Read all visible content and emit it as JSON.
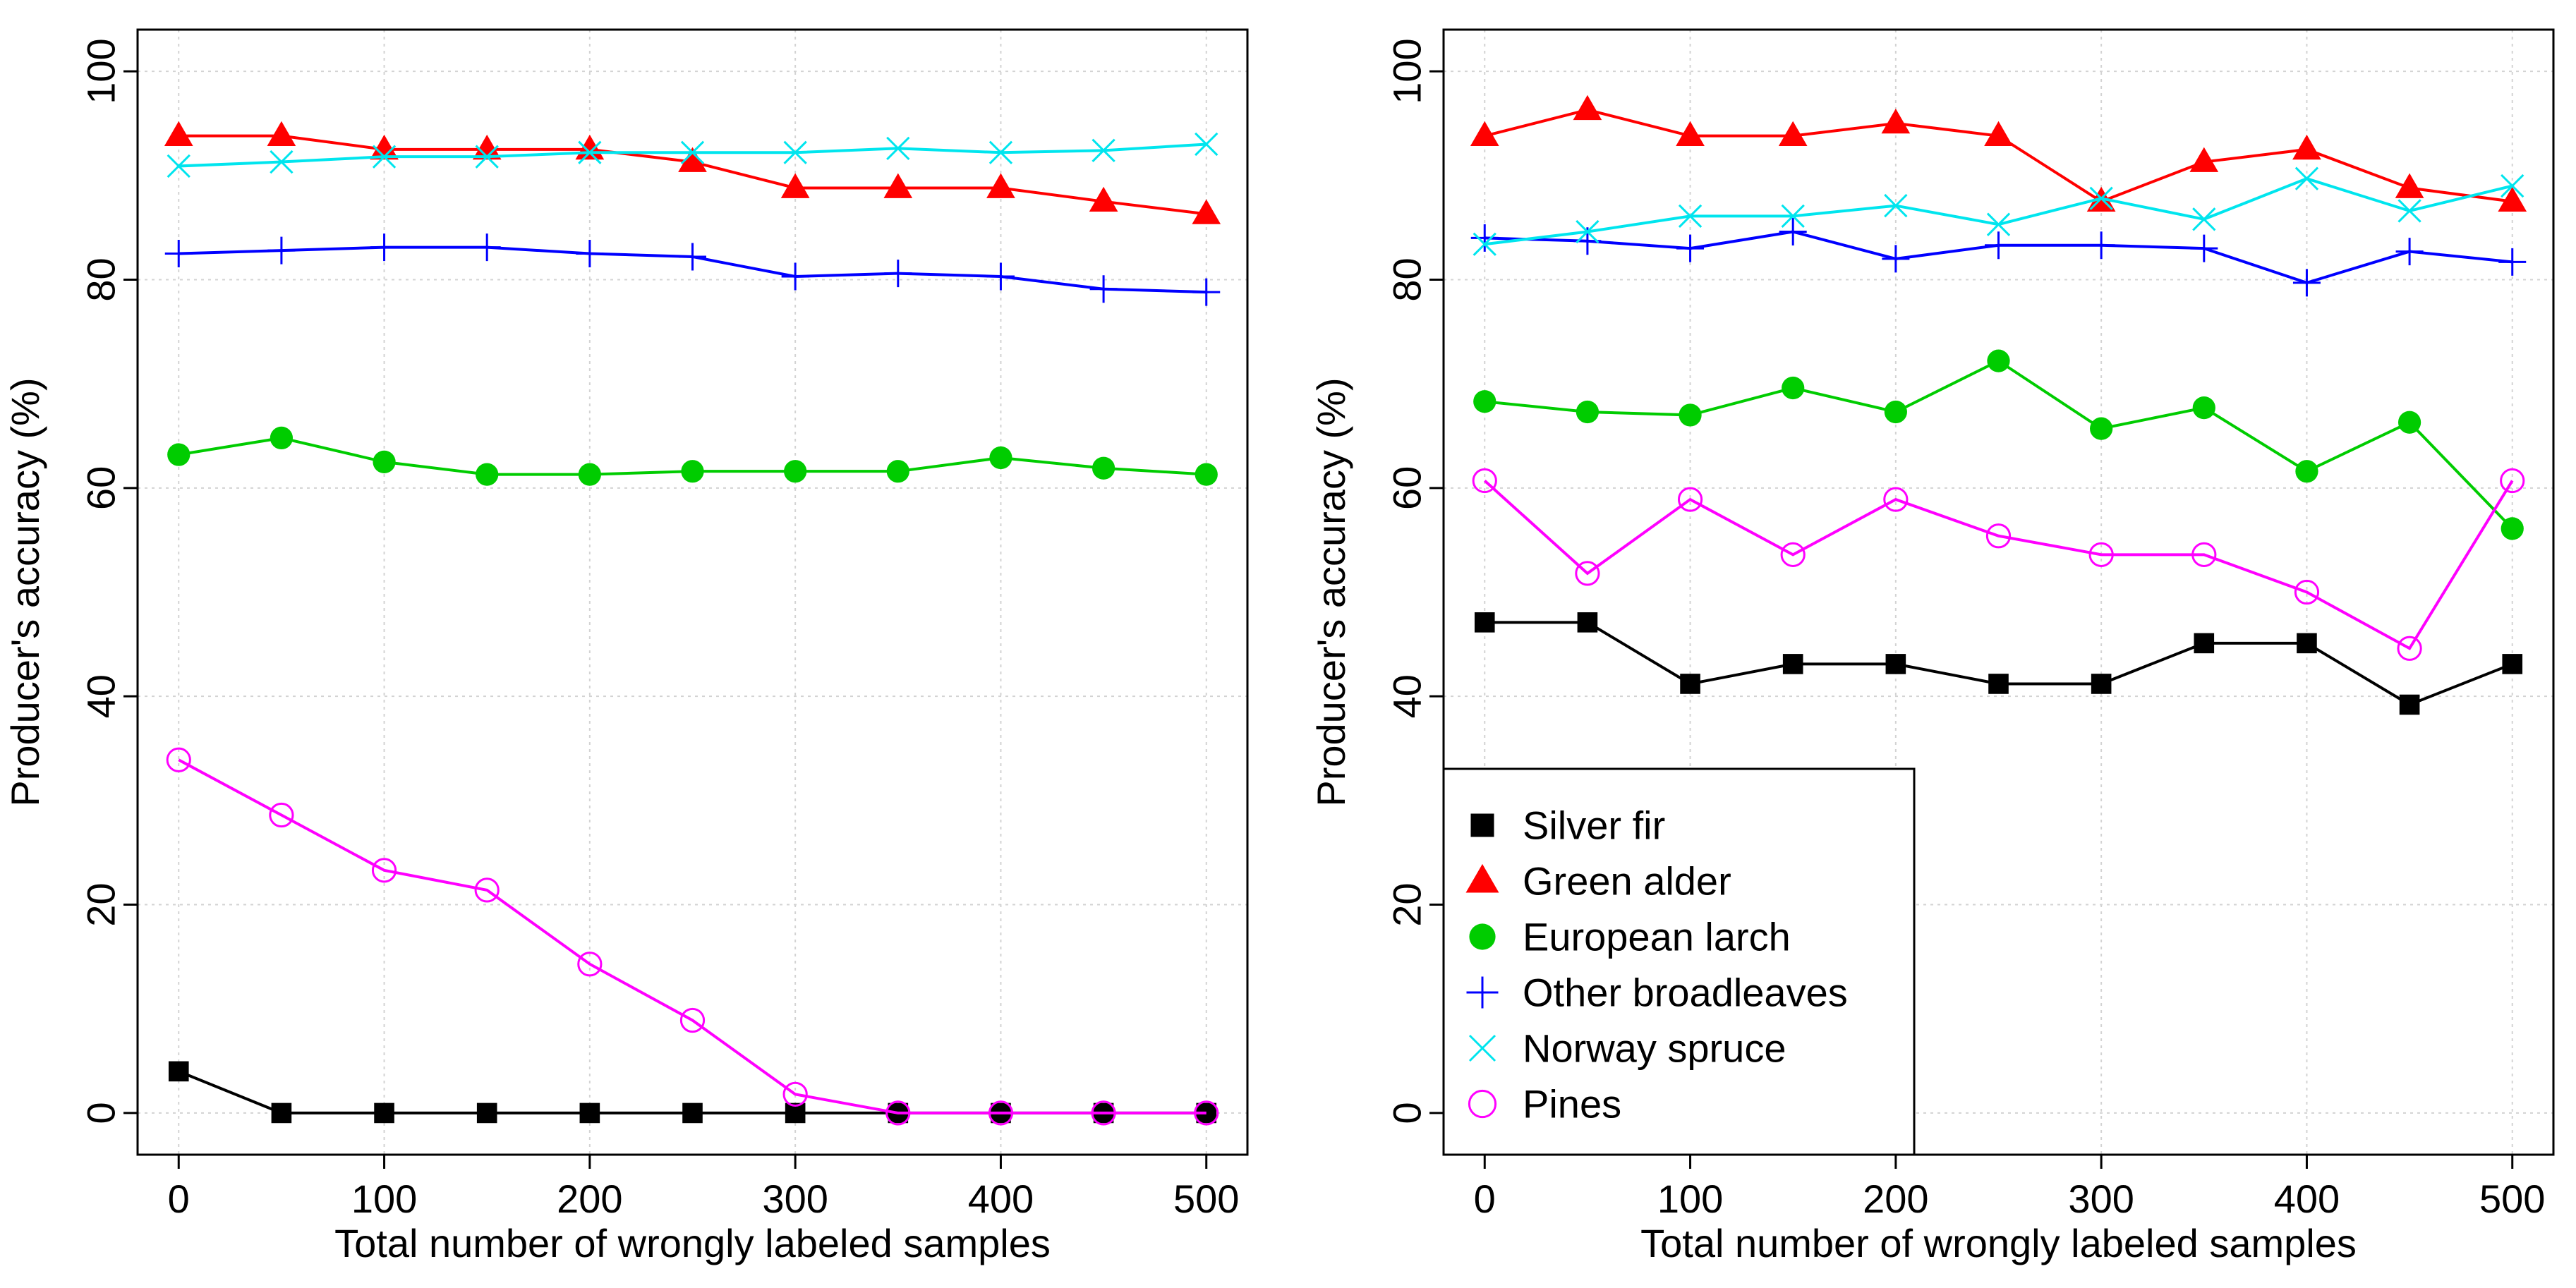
{
  "chart_data": [
    {
      "type": "line",
      "title": "",
      "xlabel": "Total number of wrongly labeled samples",
      "ylabel": "Producer's accuracy (%)",
      "xlim": [
        -20,
        520
      ],
      "ylim": [
        -4,
        104
      ],
      "grid": true,
      "legend": "none",
      "x": [
        0,
        50,
        100,
        150,
        200,
        250,
        300,
        350,
        400,
        450,
        500
      ],
      "x_ticks": [
        0,
        100,
        200,
        300,
        400,
        500
      ],
      "y_ticks": [
        0,
        20,
        40,
        60,
        80,
        100
      ],
      "series": [
        {
          "name": "Silver fir",
          "color": "#000000",
          "marker": "square",
          "values": [
            4,
            0,
            0,
            0,
            0,
            0,
            0,
            0,
            0,
            0,
            0
          ]
        },
        {
          "name": "Green alder",
          "color": "#ff0000",
          "marker": "triangle",
          "values": [
            93.8,
            93.8,
            92.5,
            92.5,
            92.5,
            91.3,
            88.8,
            88.8,
            88.8,
            87.5,
            86.3
          ]
        },
        {
          "name": "European larch",
          "color": "#00cc00",
          "marker": "circle-filled",
          "values": [
            63.2,
            64.8,
            62.5,
            61.3,
            61.3,
            61.6,
            61.6,
            61.6,
            62.9,
            61.9,
            61.3
          ]
        },
        {
          "name": "Other broadleaves",
          "color": "#0000ff",
          "marker": "plus",
          "values": [
            82.5,
            82.8,
            83.1,
            83.1,
            82.5,
            82.2,
            80.3,
            80.6,
            80.3,
            79.1,
            78.8
          ]
        },
        {
          "name": "Norway spruce",
          "color": "#00e5ee",
          "marker": "cross",
          "values": [
            90.9,
            91.3,
            91.8,
            91.8,
            92.2,
            92.2,
            92.2,
            92.6,
            92.2,
            92.4,
            93.0
          ]
        },
        {
          "name": "Pines",
          "color": "#ff00ff",
          "marker": "circle-open",
          "values": [
            33.9,
            28.6,
            23.3,
            21.4,
            14.3,
            8.9,
            1.8,
            0,
            0,
            0,
            0
          ]
        }
      ]
    },
    {
      "type": "line",
      "title": "",
      "xlabel": "Total number of wrongly labeled samples",
      "ylabel": "Producer's accuracy (%)",
      "xlim": [
        -20,
        520
      ],
      "ylim": [
        -4,
        104
      ],
      "grid": true,
      "legend": "bottom-left",
      "x": [
        0,
        50,
        100,
        150,
        200,
        250,
        300,
        350,
        400,
        450,
        500
      ],
      "x_ticks": [
        0,
        100,
        200,
        300,
        400,
        500
      ],
      "y_ticks": [
        0,
        20,
        40,
        60,
        80,
        100
      ],
      "series": [
        {
          "name": "Silver fir",
          "color": "#000000",
          "marker": "square",
          "values": [
            47.1,
            47.1,
            41.2,
            43.1,
            43.1,
            41.2,
            41.2,
            45.1,
            45.1,
            39.2,
            43.1
          ]
        },
        {
          "name": "Green alder",
          "color": "#ff0000",
          "marker": "triangle",
          "values": [
            93.8,
            96.3,
            93.8,
            93.8,
            95.0,
            93.8,
            87.5,
            91.3,
            92.5,
            88.8,
            87.5
          ]
        },
        {
          "name": "European larch",
          "color": "#00cc00",
          "marker": "circle-filled",
          "values": [
            68.3,
            67.3,
            67.0,
            69.6,
            67.3,
            72.2,
            65.7,
            67.7,
            61.6,
            66.3,
            56.1
          ]
        },
        {
          "name": "Other broadleaves",
          "color": "#0000ff",
          "marker": "plus",
          "values": [
            84.0,
            83.7,
            83.0,
            84.6,
            82.0,
            83.3,
            83.3,
            83.0,
            79.7,
            82.7,
            81.7
          ]
        },
        {
          "name": "Norway spruce",
          "color": "#00e5ee",
          "marker": "cross",
          "values": [
            83.4,
            84.6,
            86.1,
            86.1,
            87.1,
            85.3,
            87.8,
            85.8,
            89.7,
            86.6,
            89.0
          ]
        },
        {
          "name": "Pines",
          "color": "#ff00ff",
          "marker": "circle-open",
          "values": [
            60.7,
            51.8,
            58.9,
            53.6,
            58.9,
            55.4,
            53.6,
            53.6,
            50.0,
            44.6,
            60.7
          ]
        }
      ]
    }
  ]
}
